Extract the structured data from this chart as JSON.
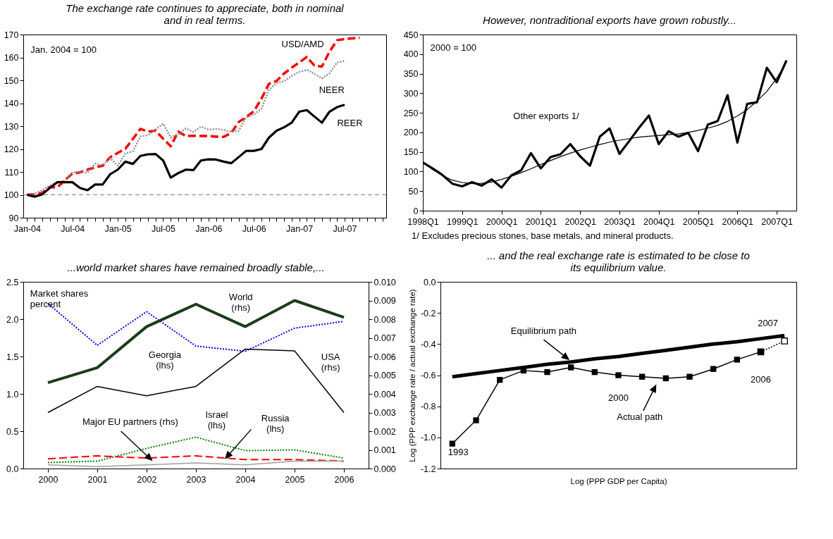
{
  "chart_data": [
    {
      "type": "line",
      "title": "The exchange rate continues to appreciate, both in nominal and in real terms.",
      "categories": [
        "Jan-04",
        null,
        null,
        null,
        null,
        null,
        "Jul-04",
        null,
        null,
        null,
        null,
        null,
        "Jan-05",
        null,
        null,
        null,
        null,
        null,
        "Jul-05",
        null,
        null,
        null,
        null,
        null,
        "Jan-06",
        null,
        null,
        null,
        null,
        null,
        "Jul-06",
        null,
        null,
        null,
        null,
        null,
        "Jan-07",
        null,
        null,
        null,
        null,
        null,
        "Jul-07",
        null,
        null,
        null,
        null,
        null
      ],
      "series": [
        {
          "name": "USD/AMD",
          "color": "#ff0000",
          "line_style": "dashed",
          "values": [
            100,
            100.3,
            100.8,
            103.4,
            103.2,
            106.4,
            109.3,
            109.8,
            111,
            112,
            112.7,
            116.4,
            118.3,
            120.1,
            124.4,
            128.8,
            127.6,
            128,
            124.5,
            121.2,
            127.6,
            125.7,
            125.8,
            125.7,
            125.7,
            125.4,
            125.3,
            127,
            131.8,
            134,
            136.5,
            142,
            148.5,
            149.7,
            153,
            155.5,
            157.8,
            160.2,
            156.5,
            156,
            162.5,
            167.5,
            168,
            168.3,
            168.6,
            null,
            null,
            null
          ]
        },
        {
          "name": "NEER",
          "color": "#8c8c8c",
          "line_style": "dotted",
          "values": [
            100,
            100.5,
            102,
            104,
            105.5,
            106,
            109.8,
            110,
            109.7,
            113.6,
            112.9,
            116,
            112.7,
            118,
            119,
            125.5,
            126,
            128.6,
            131,
            125,
            126.5,
            129,
            127.5,
            129.8,
            128.5,
            128.8,
            128.3,
            127.5,
            128,
            134,
            135,
            137.6,
            146,
            148.8,
            149.6,
            152,
            153.6,
            154.6,
            152.8,
            150.9,
            153,
            157.8,
            158.5,
            null,
            null,
            null,
            null,
            null
          ]
        },
        {
          "name": "REER",
          "color": "#000000",
          "values": [
            100,
            99.2,
            100.2,
            103,
            105.5,
            105.5,
            105.5,
            103,
            102,
            104.5,
            104.5,
            109,
            111,
            114.5,
            113.5,
            117,
            117.7,
            117.8,
            115,
            107.5,
            109.5,
            111,
            110.8,
            115,
            115.5,
            115.4,
            114.5,
            113.8,
            116.5,
            119.2,
            119.2,
            120,
            125,
            128,
            129.5,
            131.5,
            136.3,
            137,
            134.2,
            131.5,
            136.3,
            138.3,
            139.3,
            null,
            null,
            null,
            null,
            null
          ]
        }
      ],
      "ylim": [
        90,
        170
      ],
      "yticks": [
        90,
        100,
        110,
        120,
        130,
        140,
        150,
        160,
        170
      ],
      "ref_lines": [
        {
          "axis": "y",
          "value": 100,
          "color": "#808080",
          "line_style": "dashed"
        }
      ],
      "annotations": [
        "Jan. 2004 = 100"
      ]
    },
    {
      "type": "line",
      "title": "However, nontraditional exports have grown robustly...",
      "categories": [
        "1998Q1",
        null,
        null,
        null,
        "1999Q1",
        null,
        null,
        null,
        "2000Q1",
        null,
        null,
        null,
        "2001Q1",
        null,
        null,
        null,
        "2002Q1",
        null,
        null,
        null,
        "2003Q1",
        null,
        null,
        null,
        "2004Q1",
        null,
        null,
        null,
        "2005Q1",
        null,
        null,
        null,
        "2006Q1",
        null,
        null,
        null,
        "2007Q1",
        null
      ],
      "series": [
        {
          "name": "Other exports 1/",
          "color": "#000000",
          "values": [
            123,
            108,
            91,
            69,
            62,
            73,
            64,
            80,
            59,
            90,
            103,
            147,
            108,
            137,
            144,
            170,
            139,
            115,
            189,
            210,
            145,
            178,
            212,
            243,
            170,
            203,
            189,
            199,
            152,
            220,
            229,
            295,
            174,
            273,
            277,
            365,
            328,
            384
          ]
        },
        {
          "color": "#000000",
          "values": [
            123,
            105,
            90,
            78,
            72,
            69,
            70,
            73,
            80,
            88,
            97,
            107,
            118,
            128,
            138,
            147,
            155,
            162,
            169,
            175,
            180,
            184,
            188,
            190,
            192,
            194,
            196,
            200,
            205,
            211,
            218,
            228,
            242,
            258,
            280,
            305,
            338,
            380
          ]
        }
      ],
      "ylim": [
        0,
        450
      ],
      "yticks": [
        0,
        50,
        100,
        150,
        200,
        250,
        300,
        350,
        400,
        450
      ],
      "annotations": [
        "2000 = 100",
        "1/ Excludes precious stones, base metals, and mineral products."
      ]
    },
    {
      "type": "line",
      "title": "...world market shares have remained broadly stable,...",
      "categories": [
        "2000",
        "2001",
        "2002",
        "2003",
        "2004",
        "2005",
        "2006"
      ],
      "series": [
        {
          "name": "World (rhs)",
          "color": "#1a3d1a",
          "axis": "y2",
          "values": [
            0.0046,
            0.0054,
            0.0076,
            0.0088,
            0.0076,
            0.009,
            0.0081
          ]
        },
        {
          "name": "Georgia (lhs)",
          "color": "#0000ff",
          "line_style": "dotted",
          "values": [
            2.21,
            1.65,
            2.1,
            1.64,
            1.57,
            1.88,
            1.97
          ]
        },
        {
          "name": "USA (rhs)",
          "color": "#000000",
          "axis": "y2",
          "values": [
            0.003,
            0.0044,
            0.0039,
            0.0044,
            0.0064,
            0.0063,
            0.003
          ]
        },
        {
          "name": "Israel (lhs)",
          "color": "#008000",
          "line_style": "dotted",
          "values": [
            0.08,
            0.1,
            0.27,
            0.42,
            0.24,
            0.25,
            0.14
          ]
        },
        {
          "name": "Russia (lhs)",
          "color": "#ff0000",
          "line_style": "dashed",
          "values": [
            0.13,
            0.17,
            0.14,
            0.17,
            0.12,
            0.12,
            0.1
          ]
        },
        {
          "name": "Major EU partners (rhs)",
          "color": "#a0a0a0",
          "axis": "y2",
          "values": [
            0.0002,
            0.0001,
            0.0002,
            0.0003,
            0.0002,
            0.0004,
            0.0004
          ]
        }
      ],
      "ylim": [
        0,
        2.5
      ],
      "yticks": [
        {
          "value": 0,
          "label": "0.0"
        },
        0.5,
        {
          "value": 1,
          "label": "1.0"
        },
        1.5,
        {
          "value": 2,
          "label": "2.0"
        },
        2.5
      ],
      "y2lim": [
        0,
        0.01
      ],
      "y2ticks": [
        {
          "value": 0,
          "label": "0.000"
        },
        0.001,
        0.002,
        0.003,
        0.004,
        0.005,
        0.006,
        0.007,
        0.008,
        0.009,
        {
          "value": 0.01,
          "label": "0.010"
        }
      ],
      "annotations": [
        "Market shares percent"
      ]
    },
    {
      "type": "line",
      "title": "... and the real exchange rate is estimated to be close to its equilibrium value.",
      "xlabel": "Log (PPP GDP per Capita)",
      "ylabel": "Log (PPP exchange rate / actual exchange rate)",
      "categories": [
        null,
        null,
        null,
        null,
        null,
        null,
        null,
        null,
        null,
        null,
        null,
        null,
        null,
        null,
        null
      ],
      "series": [
        {
          "name": "Equilibrium path",
          "color": "#000000",
          "values": [
            -0.61,
            -0.59,
            -0.57,
            -0.55,
            -0.53,
            -0.515,
            -0.495,
            -0.48,
            -0.46,
            -0.44,
            -0.42,
            -0.4,
            -0.385,
            -0.365,
            -0.345
          ]
        },
        {
          "color": "#000000",
          "line_style": "dotted",
          "marker": "square",
          "values": [
            null,
            null,
            null,
            null,
            null,
            null,
            null,
            null,
            null,
            null,
            null,
            null,
            null,
            -0.45,
            -0.38
          ]
        },
        {
          "name": "Actual path",
          "color": "#000000",
          "marker": "square",
          "values": [
            -1.04,
            -0.89,
            -0.63,
            -0.57,
            -0.58,
            -0.55,
            -0.58,
            -0.6,
            -0.61,
            -0.62,
            -0.61,
            -0.56,
            -0.5,
            -0.45,
            null
          ]
        }
      ],
      "ylim": [
        -1.2,
        0
      ],
      "yticks": [
        {
          "value": -1.2,
          "label": "-1.2"
        },
        {
          "value": -1,
          "label": "-1.0"
        },
        -0.8,
        -0.6,
        -0.4,
        -0.2,
        {
          "value": 0,
          "label": "0.0"
        }
      ],
      "tick_labels": "y",
      "annotations": [
        "1993",
        "2000",
        "2006",
        "2007"
      ]
    }
  ]
}
